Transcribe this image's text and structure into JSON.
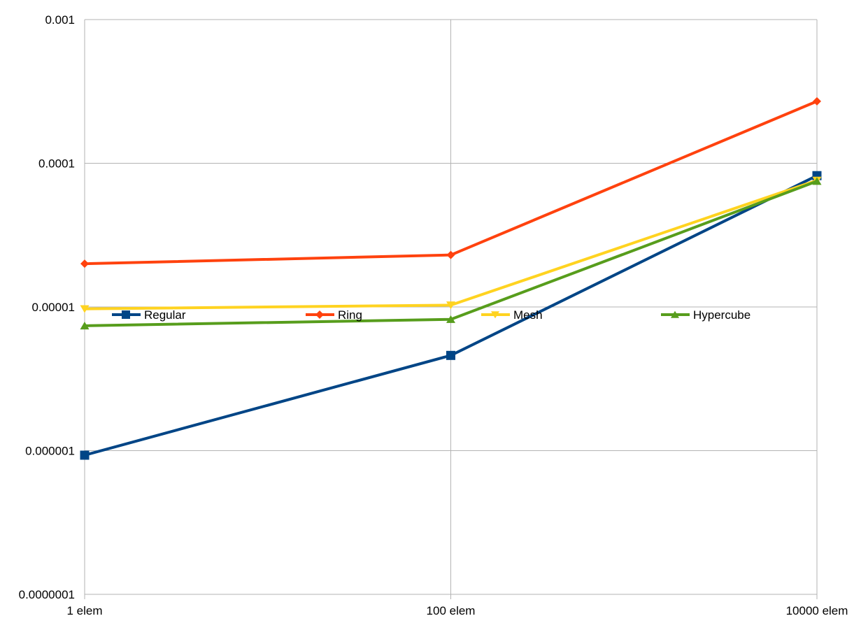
{
  "chart_data": {
    "type": "line",
    "title": "",
    "xlabel": "",
    "ylabel": "",
    "categories": [
      "1 elem",
      "100 elem",
      "10000 elem"
    ],
    "y_scale": "log",
    "ylim": [
      1e-07,
      0.001
    ],
    "y_ticks": [
      1e-07,
      1e-06,
      1e-05,
      0.0001,
      0.001
    ],
    "y_tick_labels": [
      "0.0000001",
      "0.000001",
      "0.00001",
      "0.0001",
      "0.001"
    ],
    "grid": true,
    "legend_position": "inside-middle",
    "series": [
      {
        "name": "Regular",
        "color": "#004586",
        "marker": "square",
        "values": [
          9.3e-07,
          4.6e-06,
          8.2e-05
        ]
      },
      {
        "name": "Ring",
        "color": "#ff420e",
        "marker": "diamond",
        "values": [
          2e-05,
          2.3e-05,
          0.00027
        ]
      },
      {
        "name": "Mesh",
        "color": "#ffd320",
        "marker": "triangle-down",
        "values": [
          9.7e-06,
          1.03e-05,
          7.6e-05
        ]
      },
      {
        "name": "Hypercube",
        "color": "#579d1c",
        "marker": "triangle-up",
        "values": [
          7.4e-06,
          8.2e-06,
          7.5e-05
        ]
      }
    ]
  }
}
